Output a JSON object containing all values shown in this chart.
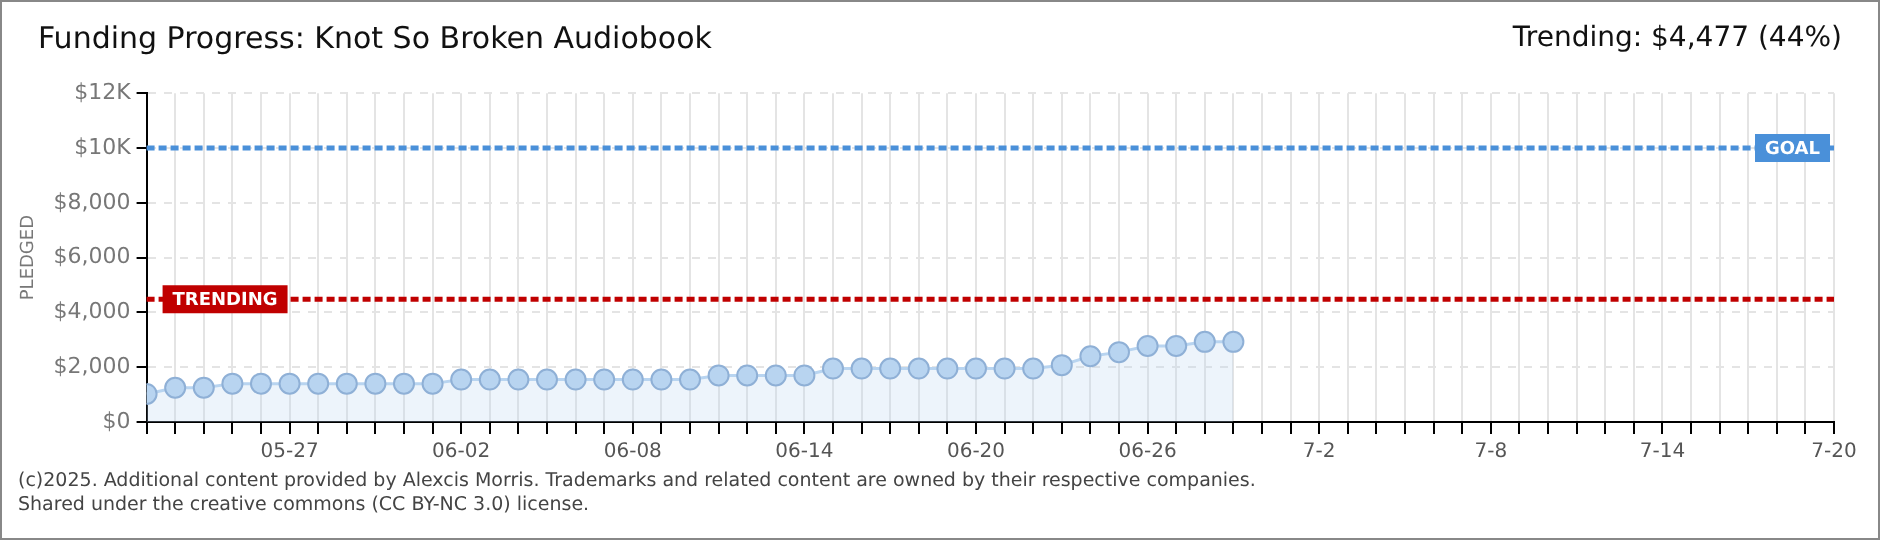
{
  "chart_data": {
    "type": "area",
    "title": "Funding Progress: Knot So Broken Audiobook",
    "ylabel": "PLEDGED",
    "annotations": [
      "Trending: $4,477 (44%)",
      "(c)2025. Additional content provided by Alexcis Morris. Trademarks and related content are owned by their respective companies.",
      "Shared under the creative commons (CC BY-NC 3.0) license."
    ],
    "x": [
      "--05-22",
      "--05-23",
      "--05-24",
      "--05-25",
      "--05-26",
      "--05-27",
      "--05-28",
      "--05-29",
      "--05-30",
      "--05-31",
      "--06-01",
      "--06-02",
      "--06-03",
      "--06-04",
      "--06-05",
      "--06-06",
      "--06-07",
      "--06-08",
      "--06-09",
      "--06-10",
      "--06-11",
      "--06-12",
      "--06-13",
      "--06-14",
      "--06-15",
      "--06-16",
      "--06-17",
      "--06-18",
      "--06-19",
      "--06-20",
      "--06-21",
      "--06-22",
      "--06-23",
      "--06-24",
      "--06-25",
      "--06-26",
      "--06-27",
      "--06-28",
      "--06-29"
    ],
    "series": [
      {
        "color": "#b8d4f0",
        "values": [
          1025,
          1250,
          1250,
          1400,
          1400,
          1400,
          1400,
          1400,
          1400,
          1400,
          1400,
          1550,
          1550,
          1550,
          1550,
          1550,
          1550,
          1550,
          1550,
          1550,
          1700,
          1700,
          1700,
          1700,
          1950,
          1950,
          1950,
          1950,
          1950,
          1950,
          1950,
          1950,
          2075,
          2400,
          2550,
          2775,
          2775,
          2925,
          2925
        ]
      }
    ],
    "xlim": [
      "--05-22",
      "--07-20"
    ],
    "xticks": [
      {
        "value": "--05-22",
        "label": null
      },
      {
        "value": "--05-23",
        "label": null
      },
      {
        "value": "--05-24",
        "label": null
      },
      {
        "value": "--05-25",
        "label": null
      },
      {
        "value": "--05-26",
        "label": null
      },
      {
        "value": "--05-27",
        "label": "05-27"
      },
      {
        "value": "--05-28",
        "label": null
      },
      {
        "value": "--05-29",
        "label": null
      },
      {
        "value": "--05-30",
        "label": null
      },
      {
        "value": "--05-31",
        "label": null
      },
      {
        "value": "--06-01",
        "label": null
      },
      {
        "value": "--06-02",
        "label": "06-02"
      },
      {
        "value": "--06-03",
        "label": null
      },
      {
        "value": "--06-04",
        "label": null
      },
      {
        "value": "--06-05",
        "label": null
      },
      {
        "value": "--06-06",
        "label": null
      },
      {
        "value": "--06-07",
        "label": null
      },
      {
        "value": "--06-08",
        "label": "06-08"
      },
      {
        "value": "--06-09",
        "label": null
      },
      {
        "value": "--06-10",
        "label": null
      },
      {
        "value": "--06-11",
        "label": null
      },
      {
        "value": "--06-12",
        "label": null
      },
      {
        "value": "--06-13",
        "label": null
      },
      {
        "value": "--06-14",
        "label": "06-14"
      },
      {
        "value": "--06-15",
        "label": null
      },
      {
        "value": "--06-16",
        "label": null
      },
      {
        "value": "--06-17",
        "label": null
      },
      {
        "value": "--06-18",
        "label": null
      },
      {
        "value": "--06-19",
        "label": null
      },
      {
        "value": "--06-20",
        "label": "06-20"
      },
      {
        "value": "--06-21",
        "label": null
      },
      {
        "value": "--06-22",
        "label": null
      },
      {
        "value": "--06-23",
        "label": null
      },
      {
        "value": "--06-24",
        "label": null
      },
      {
        "value": "--06-25",
        "label": null
      },
      {
        "value": "--06-26",
        "label": "06-26"
      },
      {
        "value": "--06-27",
        "label": null
      },
      {
        "value": "--06-28",
        "label": null
      },
      {
        "value": "--06-29",
        "label": null
      },
      {
        "value": "--06-30",
        "label": null
      },
      {
        "value": "--07-01",
        "label": null
      },
      {
        "value": "--07-02",
        "label": "7-2"
      },
      {
        "value": "--07-03",
        "label": null
      },
      {
        "value": "--07-04",
        "label": null
      },
      {
        "value": "--07-05",
        "label": null
      },
      {
        "value": "--07-06",
        "label": null
      },
      {
        "value": "--07-07",
        "label": null
      },
      {
        "value": "--07-08",
        "label": "7-8"
      },
      {
        "value": "--07-09",
        "label": null
      },
      {
        "value": "--07-10",
        "label": null
      },
      {
        "value": "--07-11",
        "label": null
      },
      {
        "value": "--07-12",
        "label": null
      },
      {
        "value": "--07-13",
        "label": null
      },
      {
        "value": "--07-14",
        "label": "7-14"
      },
      {
        "value": "--07-15",
        "label": null
      },
      {
        "value": "--07-16",
        "label": null
      },
      {
        "value": "--07-17",
        "label": null
      },
      {
        "value": "--07-18",
        "label": null
      },
      {
        "value": "--07-19",
        "label": null
      },
      {
        "value": "--07-20",
        "label": "7-20"
      }
    ],
    "ylim": [
      0,
      12000
    ],
    "yticks": [
      {
        "value": 0,
        "label": "$0"
      },
      {
        "value": 2000,
        "label": "$2,000"
      },
      {
        "value": 4000,
        "label": "$4,000"
      },
      {
        "value": 6000,
        "label": "$6,000"
      },
      {
        "value": 8000,
        "label": "$8,000"
      },
      {
        "value": 10000,
        "label": "$10K"
      },
      {
        "value": 12000,
        "label": "$12K"
      }
    ],
    "ref_lines": [
      {
        "axis": "y",
        "value": 10000,
        "label": "GOAL",
        "color": "#4a90d9",
        "line_style": "dashed"
      },
      {
        "axis": "y",
        "value": 4477,
        "label": "TRENDING",
        "color": "#c00000",
        "line_style": "dashed"
      }
    ],
    "grid": true,
    "legend": false,
    "marker": "circle",
    "line_style": "solid"
  }
}
